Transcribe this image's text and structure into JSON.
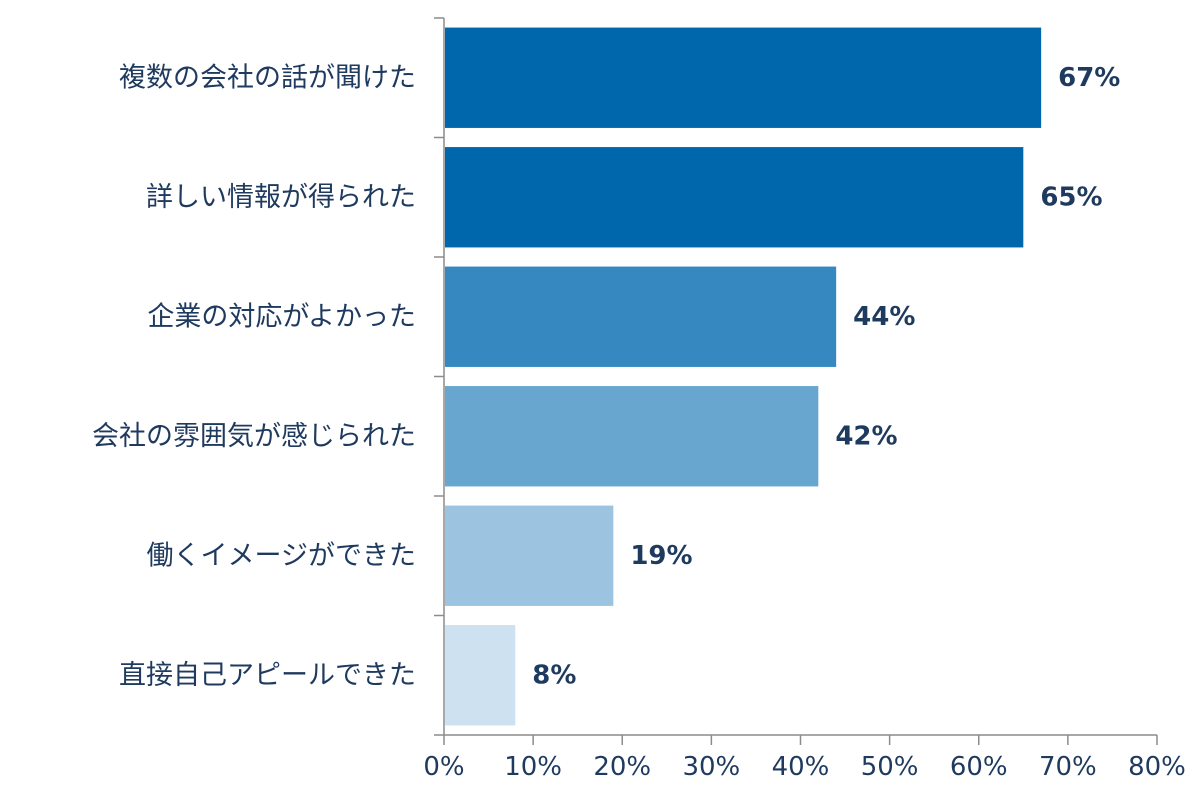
{
  "chart_data": {
    "type": "bar",
    "orientation": "horizontal",
    "categories": [
      "複数の会社の話が聞けた",
      "詳しい情報が得られた",
      "企業の対応がよかった",
      "会社の雰囲気が感じられた",
      "働くイメージができた",
      "直接自己アピールできた"
    ],
    "values": [
      67,
      65,
      44,
      42,
      19,
      8
    ],
    "value_labels": [
      "67%",
      "65%",
      "44%",
      "42%",
      "19%",
      "8%"
    ],
    "bar_colors": [
      "#0067ad",
      "#0067ad",
      "#3589c0",
      "#68a6d0",
      "#9cc4e1",
      "#cde1f0"
    ],
    "xlim": [
      0,
      80
    ],
    "xticks": [
      0,
      10,
      20,
      30,
      40,
      50,
      60,
      70,
      80
    ],
    "xtick_labels": [
      "0%",
      "10%",
      "20%",
      "30%",
      "40%",
      "50%",
      "60%",
      "70%",
      "80%"
    ],
    "grid": false,
    "title": "",
    "xlabel": "",
    "ylabel": ""
  }
}
